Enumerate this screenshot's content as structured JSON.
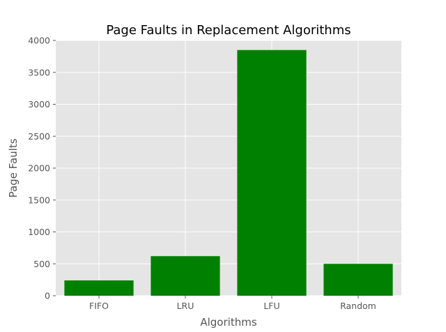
{
  "chart_data": {
    "type": "bar",
    "title": "Page Faults in Replacement Algorithms",
    "xlabel": "Algorithms",
    "ylabel": "Page Faults",
    "categories": [
      "FIFO",
      "LRU",
      "LFU",
      "Random"
    ],
    "values": [
      240,
      620,
      3850,
      500
    ],
    "ylim": [
      0,
      4000
    ],
    "yticks": [
      0,
      500,
      1000,
      1500,
      2000,
      2500,
      3000,
      3500,
      4000
    ],
    "grid": true,
    "bar_color": "#008000",
    "background_color": "#e5e5e5",
    "grid_color": "#ffffff",
    "style": "ggplot"
  }
}
